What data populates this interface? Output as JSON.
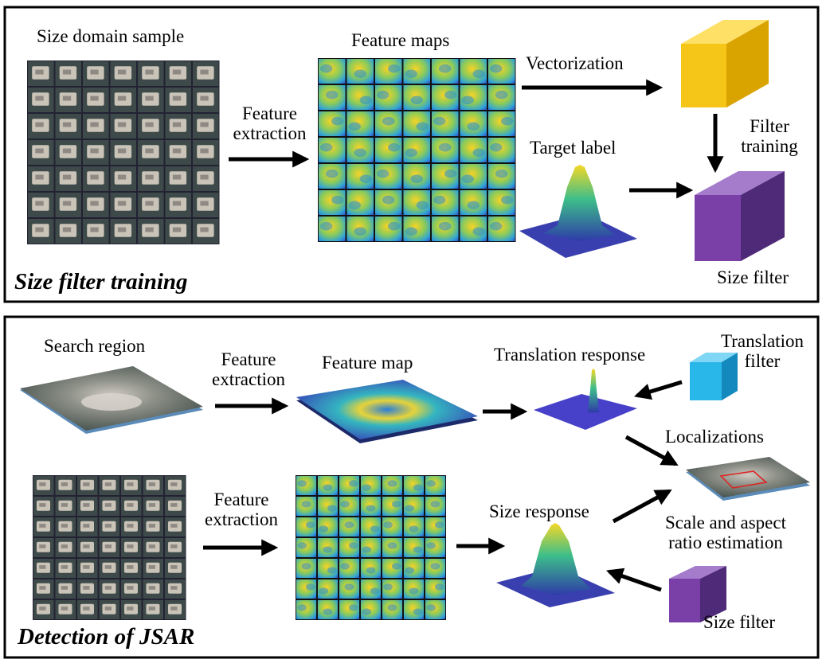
{
  "top_panel": {
    "title": "Size filter training",
    "labels": {
      "size_domain_sample": "Size domain sample",
      "feature_extraction": "Feature\nextraction",
      "feature_maps": "Feature maps",
      "vectorization": "Vectorization",
      "target_label": "Target label",
      "filter_training": "Filter\ntraining",
      "size_filter": "Size filter"
    }
  },
  "bottom_panel": {
    "title": "Detection of JSAR",
    "labels": {
      "search_region": "Search region",
      "feature_extraction_1": "Feature\nextraction",
      "feature_map": "Feature map",
      "translation_response": "Translation response",
      "translation_filter": "Translation\nfilter",
      "localizations": "Localizations",
      "feature_extraction_2": "Feature\nextraction",
      "size_response": "Size response",
      "scale_aspect": "Scale and aspect\nratio estimation",
      "size_filter": "Size filter"
    }
  },
  "colors": {
    "yellow_block": "#F5C518",
    "purple_block": "#7B3FA8",
    "cyan_block": "#29B6E8",
    "heat_low": "#2E3BA8",
    "heat_mid": "#22B3A6",
    "heat_high": "#F6D826"
  }
}
